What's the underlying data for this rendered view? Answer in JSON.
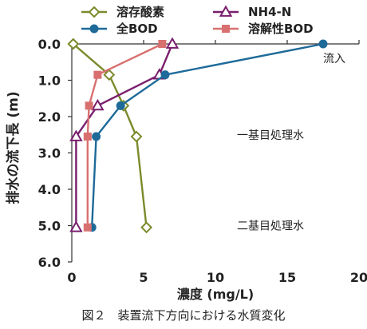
{
  "caption": "図２　装置流下方向における水質変化",
  "chart_data": {
    "type": "line",
    "xlabel": "濃度 (mg/L)",
    "ylabel": "排水の流下長 (m)",
    "xlim": [
      0,
      20
    ],
    "ylim": [
      0,
      6
    ],
    "y_inverted": true,
    "x_ticks": [
      0,
      5,
      10,
      15,
      20
    ],
    "y_ticks": [
      "0.0",
      "1.0",
      "2.0",
      "3.0",
      "4.0",
      "5.0",
      "6.0"
    ],
    "legend_position": "top",
    "grid": false,
    "annotations": [
      {
        "text": "流入",
        "x": 17.5,
        "y": 0.4
      },
      {
        "text": "一基目処理水",
        "x": 11.5,
        "y": 2.5
      },
      {
        "text": "二基目処理水",
        "x": 11.5,
        "y": 5.0
      }
    ],
    "series": [
      {
        "name": "溶存酸素",
        "color": "#7b8a2b",
        "marker": "diamond-open",
        "points": [
          [
            0.1,
            0.0
          ],
          [
            2.6,
            0.85
          ],
          [
            3.6,
            1.7
          ],
          [
            4.5,
            2.55
          ],
          [
            5.2,
            5.05
          ]
        ]
      },
      {
        "name": "NH4-N",
        "color": "#7a1f6e",
        "marker": "triangle-open",
        "points": [
          [
            7.0,
            0.0
          ],
          [
            6.1,
            0.85
          ],
          [
            1.8,
            1.7
          ],
          [
            0.3,
            2.55
          ],
          [
            0.3,
            5.05
          ]
        ]
      },
      {
        "name": "全BOD",
        "color": "#1e6a99",
        "marker": "circle-filled",
        "points": [
          [
            17.5,
            0.0
          ],
          [
            6.5,
            0.85
          ],
          [
            3.4,
            1.7
          ],
          [
            1.7,
            2.55
          ],
          [
            1.4,
            5.05
          ]
        ]
      },
      {
        "name": "溶解性BOD",
        "color": "#d87070",
        "marker": "square-filled",
        "points": [
          [
            6.3,
            0.0
          ],
          [
            1.8,
            0.85
          ],
          [
            1.2,
            1.7
          ],
          [
            1.1,
            2.55
          ],
          [
            1.1,
            5.05
          ]
        ]
      }
    ]
  }
}
